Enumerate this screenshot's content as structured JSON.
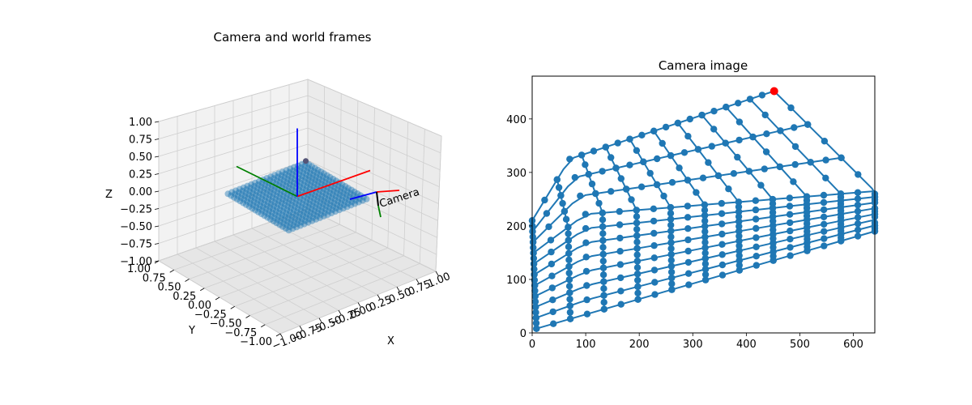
{
  "chart_data": [
    {
      "type": "scatter",
      "projection": "3d",
      "title": "Camera and world frames",
      "xlabel": "X",
      "ylabel": "Y",
      "zlabel": "Z",
      "xlim": [
        -1.0,
        1.0
      ],
      "ylim": [
        -1.0,
        1.0
      ],
      "zlim": [
        -1.0,
        1.0
      ],
      "xticks": [
        "−1.00",
        "−0.75",
        "−0.50",
        "−0.25",
        "0.00",
        "0.25",
        "0.50",
        "0.75",
        "1.00"
      ],
      "yticks": [
        "−1.00",
        "−0.75",
        "−0.50",
        "−0.25",
        "0.00",
        "0.25",
        "0.50",
        "0.75",
        "1.00"
      ],
      "zticks": [
        "−1.00",
        "−0.75",
        "−0.50",
        "−0.25",
        "0.00",
        "0.25",
        "0.50",
        "0.75",
        "1.00"
      ],
      "grid": true,
      "point_grid": {
        "x_range": [
          -0.5,
          0.5
        ],
        "y_range": [
          -0.5,
          0.5
        ],
        "z": 0.0,
        "count_per_side": 21,
        "color": "#1f77b4"
      },
      "highlight_point": {
        "x": 0.5,
        "y": 0.5,
        "z": 0.0
      },
      "world_frame": {
        "origin": [
          0,
          0,
          0
        ],
        "length": 1.0,
        "colors": {
          "x": "#ff0000",
          "y": "#008000",
          "z": "#0000ff"
        }
      },
      "camera_frame": {
        "origin": [
          0.55,
          -0.9,
          0.1
        ],
        "label": "Camera",
        "colors": {
          "x": "#ff0000",
          "y": "#000000",
          "z": "#0000ff",
          "extra": "#008000"
        }
      }
    },
    {
      "type": "scatter",
      "title": "Camera image",
      "xlim": [
        0,
        640
      ],
      "ylim": [
        0,
        480
      ],
      "xticks": [
        "0",
        "100",
        "200",
        "300",
        "400",
        "500",
        "600"
      ],
      "yticks": [
        "0",
        "100",
        "200",
        "300",
        "400"
      ],
      "point_color": "#1f77b4",
      "highlight_color": "#ff0000",
      "highlight_point": {
        "x": 452,
        "y": 452
      },
      "grid_lines": 10,
      "corners": {
        "far_left": {
          "x": 0,
          "y": 210
        },
        "far_apex": {
          "x": 452,
          "y": 452
        },
        "near_left": {
          "x": 8,
          "y": 8
        },
        "near_right": {
          "x": 640,
          "y": 190
        },
        "right_top": {
          "x": 640,
          "y": 265
        },
        "mid_left": {
          "x": 70,
          "y": 325
        }
      }
    }
  ]
}
